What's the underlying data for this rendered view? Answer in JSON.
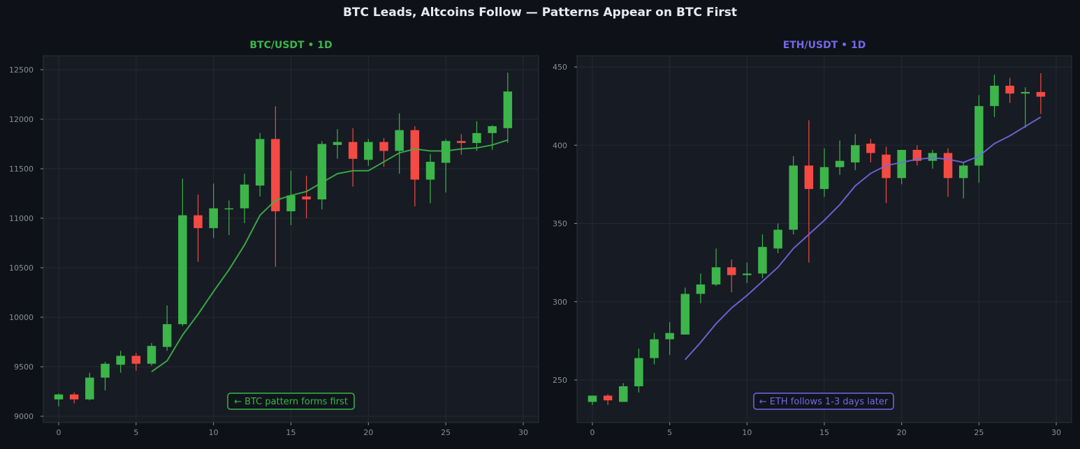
{
  "title": "BTC Leads, Altcoins Follow — Patterns Appear on BTC First",
  "colors": {
    "background": "#0e1118",
    "panel": "#171b23",
    "grid": "#242833",
    "up": "#3cb54a",
    "down": "#f44a44"
  },
  "chart_data": [
    {
      "type": "candlestick",
      "title": "BTC/USDT • 1D",
      "title_color": "#3cb54a",
      "ma_color": "#3cb54a",
      "xlim": [
        -1,
        31
      ],
      "ylim": [
        8950,
        12620
      ],
      "xticks": [
        0,
        5,
        10,
        15,
        20,
        25,
        30
      ],
      "yticks": [
        9000,
        9500,
        10000,
        10500,
        11000,
        11500,
        12000,
        12500
      ],
      "annotation": "← BTC pattern forms first",
      "candles": [
        {
          "x": 0,
          "open": 9170,
          "high": 9230,
          "low": 9100,
          "close": 9220
        },
        {
          "x": 1,
          "open": 9220,
          "high": 9240,
          "low": 9130,
          "close": 9170
        },
        {
          "x": 2,
          "open": 9170,
          "high": 9440,
          "low": 9160,
          "close": 9390
        },
        {
          "x": 3,
          "open": 9390,
          "high": 9550,
          "low": 9260,
          "close": 9530
        },
        {
          "x": 4,
          "open": 9520,
          "high": 9660,
          "low": 9440,
          "close": 9610
        },
        {
          "x": 5,
          "open": 9610,
          "high": 9640,
          "low": 9460,
          "close": 9530
        },
        {
          "x": 6,
          "open": 9530,
          "high": 9740,
          "low": 9510,
          "close": 9710
        },
        {
          "x": 7,
          "open": 9700,
          "high": 10120,
          "low": 9660,
          "close": 9930
        },
        {
          "x": 8,
          "open": 9930,
          "high": 11400,
          "low": 9910,
          "close": 11030
        },
        {
          "x": 9,
          "open": 11030,
          "high": 11240,
          "low": 10560,
          "close": 10900
        },
        {
          "x": 10,
          "open": 10900,
          "high": 11350,
          "low": 10800,
          "close": 11100
        },
        {
          "x": 11,
          "open": 11100,
          "high": 11180,
          "low": 10830,
          "close": 11100
        },
        {
          "x": 12,
          "open": 11100,
          "high": 11450,
          "low": 10950,
          "close": 11340
        },
        {
          "x": 13,
          "open": 11330,
          "high": 11860,
          "low": 11220,
          "close": 11800
        },
        {
          "x": 14,
          "open": 11800,
          "high": 12130,
          "low": 10510,
          "close": 11070
        },
        {
          "x": 15,
          "open": 11070,
          "high": 11480,
          "low": 10930,
          "close": 11230
        },
        {
          "x": 16,
          "open": 11220,
          "high": 11430,
          "low": 11000,
          "close": 11190
        },
        {
          "x": 17,
          "open": 11190,
          "high": 11780,
          "low": 11090,
          "close": 11750
        },
        {
          "x": 18,
          "open": 11740,
          "high": 11900,
          "low": 11600,
          "close": 11770
        },
        {
          "x": 19,
          "open": 11770,
          "high": 11910,
          "low": 11320,
          "close": 11600
        },
        {
          "x": 20,
          "open": 11590,
          "high": 11800,
          "low": 11530,
          "close": 11770
        },
        {
          "x": 21,
          "open": 11770,
          "high": 11810,
          "low": 11520,
          "close": 11680
        },
        {
          "x": 22,
          "open": 11680,
          "high": 12060,
          "low": 11450,
          "close": 11890
        },
        {
          "x": 23,
          "open": 11890,
          "high": 11930,
          "low": 11120,
          "close": 11390
        },
        {
          "x": 24,
          "open": 11390,
          "high": 11650,
          "low": 11150,
          "close": 11570
        },
        {
          "x": 25,
          "open": 11560,
          "high": 11800,
          "low": 11260,
          "close": 11780
        },
        {
          "x": 26,
          "open": 11780,
          "high": 11850,
          "low": 11640,
          "close": 11760
        },
        {
          "x": 27,
          "open": 11760,
          "high": 11980,
          "low": 11680,
          "close": 11860
        },
        {
          "x": 28,
          "open": 11860,
          "high": 11940,
          "low": 11690,
          "close": 11930
        },
        {
          "x": 29,
          "open": 11910,
          "high": 12470,
          "low": 11760,
          "close": 12280
        }
      ],
      "ma": [
        {
          "x": 6,
          "y": 9450
        },
        {
          "x": 7,
          "y": 9560
        },
        {
          "x": 8,
          "y": 9820
        },
        {
          "x": 9,
          "y": 10030
        },
        {
          "x": 10,
          "y": 10260
        },
        {
          "x": 11,
          "y": 10480
        },
        {
          "x": 12,
          "y": 10730
        },
        {
          "x": 13,
          "y": 11030
        },
        {
          "x": 14,
          "y": 11180
        },
        {
          "x": 15,
          "y": 11230
        },
        {
          "x": 16,
          "y": 11270
        },
        {
          "x": 17,
          "y": 11360
        },
        {
          "x": 18,
          "y": 11450
        },
        {
          "x": 19,
          "y": 11480
        },
        {
          "x": 20,
          "y": 11480
        },
        {
          "x": 21,
          "y": 11570
        },
        {
          "x": 22,
          "y": 11660
        },
        {
          "x": 23,
          "y": 11700
        },
        {
          "x": 24,
          "y": 11680
        },
        {
          "x": 25,
          "y": 11680
        },
        {
          "x": 26,
          "y": 11700
        },
        {
          "x": 27,
          "y": 11710
        },
        {
          "x": 28,
          "y": 11740
        },
        {
          "x": 29,
          "y": 11790
        }
      ]
    },
    {
      "type": "candlestick",
      "title": "ETH/USDT • 1D",
      "title_color": "#7468e6",
      "ma_color": "#7468e6",
      "xlim": [
        -1,
        31
      ],
      "ylim": [
        227,
        456
      ],
      "xticks": [
        0,
        5,
        10,
        15,
        20,
        25,
        30
      ],
      "yticks": [
        250,
        300,
        350,
        400,
        450
      ],
      "annotation": "← ETH follows 1-3 days later",
      "candles": [
        {
          "x": 0,
          "open": 236,
          "high": 240,
          "low": 234,
          "close": 240
        },
        {
          "x": 1,
          "open": 240,
          "high": 241,
          "low": 234,
          "close": 237
        },
        {
          "x": 2,
          "open": 236,
          "high": 248,
          "low": 236,
          "close": 246
        },
        {
          "x": 3,
          "open": 246,
          "high": 270,
          "low": 242,
          "close": 264
        },
        {
          "x": 4,
          "open": 264,
          "high": 280,
          "low": 260,
          "close": 276
        },
        {
          "x": 5,
          "open": 276,
          "high": 287,
          "low": 266,
          "close": 280
        },
        {
          "x": 6,
          "open": 279,
          "high": 309,
          "low": 279,
          "close": 305
        },
        {
          "x": 7,
          "open": 305,
          "high": 318,
          "low": 299,
          "close": 311
        },
        {
          "x": 8,
          "open": 311,
          "high": 334,
          "low": 310,
          "close": 322
        },
        {
          "x": 9,
          "open": 322,
          "high": 327,
          "low": 306,
          "close": 317
        },
        {
          "x": 10,
          "open": 317,
          "high": 325,
          "low": 312,
          "close": 318
        },
        {
          "x": 11,
          "open": 318,
          "high": 343,
          "low": 315,
          "close": 335
        },
        {
          "x": 12,
          "open": 334,
          "high": 350,
          "low": 331,
          "close": 346
        },
        {
          "x": 13,
          "open": 346,
          "high": 393,
          "low": 343,
          "close": 387
        },
        {
          "x": 14,
          "open": 387,
          "high": 416,
          "low": 325,
          "close": 372
        },
        {
          "x": 15,
          "open": 372,
          "high": 398,
          "low": 367,
          "close": 386
        },
        {
          "x": 16,
          "open": 386,
          "high": 403,
          "low": 381,
          "close": 390
        },
        {
          "x": 17,
          "open": 389,
          "high": 407,
          "low": 384,
          "close": 400
        },
        {
          "x": 18,
          "open": 401,
          "high": 404,
          "low": 389,
          "close": 395
        },
        {
          "x": 19,
          "open": 394,
          "high": 399,
          "low": 363,
          "close": 379
        },
        {
          "x": 20,
          "open": 379,
          "high": 397,
          "low": 375,
          "close": 397
        },
        {
          "x": 21,
          "open": 397,
          "high": 400,
          "low": 387,
          "close": 390
        },
        {
          "x": 22,
          "open": 390,
          "high": 397,
          "low": 385,
          "close": 395
        },
        {
          "x": 23,
          "open": 395,
          "high": 398,
          "low": 367,
          "close": 379
        },
        {
          "x": 24,
          "open": 379,
          "high": 389,
          "low": 366,
          "close": 387
        },
        {
          "x": 25,
          "open": 387,
          "high": 432,
          "low": 376,
          "close": 425
        },
        {
          "x": 26,
          "open": 425,
          "high": 445,
          "low": 418,
          "close": 438
        },
        {
          "x": 27,
          "open": 438,
          "high": 443,
          "low": 427,
          "close": 433
        },
        {
          "x": 28,
          "open": 433,
          "high": 437,
          "low": 411,
          "close": 434
        },
        {
          "x": 29,
          "open": 434,
          "high": 446,
          "low": 420,
          "close": 431
        }
      ],
      "ma": [
        {
          "x": 6,
          "y": 263
        },
        {
          "x": 7,
          "y": 274
        },
        {
          "x": 8,
          "y": 286
        },
        {
          "x": 9,
          "y": 296
        },
        {
          "x": 10,
          "y": 304
        },
        {
          "x": 11,
          "y": 313
        },
        {
          "x": 12,
          "y": 322
        },
        {
          "x": 13,
          "y": 334
        },
        {
          "x": 14,
          "y": 343
        },
        {
          "x": 15,
          "y": 352
        },
        {
          "x": 16,
          "y": 362
        },
        {
          "x": 17,
          "y": 374
        },
        {
          "x": 18,
          "y": 382
        },
        {
          "x": 19,
          "y": 387
        },
        {
          "x": 20,
          "y": 389
        },
        {
          "x": 21,
          "y": 391
        },
        {
          "x": 22,
          "y": 392
        },
        {
          "x": 23,
          "y": 391
        },
        {
          "x": 24,
          "y": 389
        },
        {
          "x": 25,
          "y": 393
        },
        {
          "x": 26,
          "y": 401
        },
        {
          "x": 27,
          "y": 406
        },
        {
          "x": 28,
          "y": 412
        },
        {
          "x": 29,
          "y": 418
        }
      ]
    }
  ]
}
